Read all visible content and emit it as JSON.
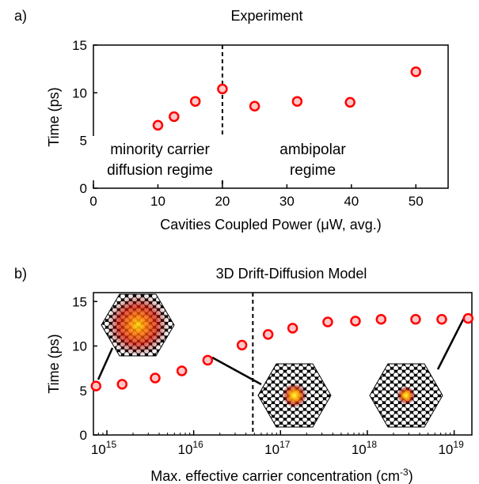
{
  "chart_data": [
    {
      "panel": "a)",
      "type": "scatter",
      "title": "Experiment",
      "xlabel": "Cavities Coupled Power (μW, avg.)",
      "ylabel": "Time (ps)",
      "xlim": [
        0,
        55
      ],
      "ylim": [
        0,
        15
      ],
      "xticks": [
        0,
        10,
        20,
        30,
        40,
        50
      ],
      "yticks": [
        0,
        5,
        10,
        15
      ],
      "x": [
        10,
        12.5,
        15.8,
        20,
        25,
        31.6,
        39.8,
        50
      ],
      "y": [
        6.6,
        7.5,
        9.1,
        10.4,
        8.6,
        9.1,
        9.0,
        12.2
      ],
      "divider_x": 20,
      "annotations": [
        {
          "lines": [
            "minority carrier",
            "diffusion regime"
          ]
        },
        {
          "lines": [
            "ambipolar",
            "regime"
          ]
        }
      ],
      "marker_color": "#ff0000"
    },
    {
      "panel": "b)",
      "type": "scatter",
      "title": "3D Drift-Diffusion Model",
      "xlabel": "Max. effective carrier concentration (cm",
      "xlabel_sup": "-3",
      "xlabel_end": ")",
      "ylabel": "Time (ps)",
      "xscale": "log",
      "xlim": [
        700000000000000.0,
        1.6e+19
      ],
      "ylim": [
        0,
        16
      ],
      "xticks": [
        {
          "base": "10",
          "exp": "15",
          "value": 1000000000000000.0
        },
        {
          "base": "10",
          "exp": "16",
          "value": 1e+16
        },
        {
          "base": "10",
          "exp": "17",
          "value": 1e+17
        },
        {
          "base": "10",
          "exp": "18",
          "value": 1e+18
        },
        {
          "base": "10",
          "exp": "19",
          "value": 1e+19
        }
      ],
      "yticks": [
        0,
        5,
        10,
        15
      ],
      "x": [
        750000000000000.0,
        1500000000000000.0,
        3600000000000000.0,
        7300000000000000.0,
        1.45e+16,
        3.6e+16,
        7.2e+16,
        1.38e+17,
        3.5e+17,
        7.3e+17,
        1.44e+18,
        3.6e+18,
        7.2e+18,
        1.45e+19
      ],
      "y": [
        5.5,
        5.7,
        6.4,
        7.2,
        8.4,
        10.1,
        11.3,
        12.0,
        12.7,
        12.8,
        13.0,
        13.0,
        13.0,
        13.1
      ],
      "divider_x": 4.8e+16,
      "marker_color": "#ff0000"
    }
  ]
}
